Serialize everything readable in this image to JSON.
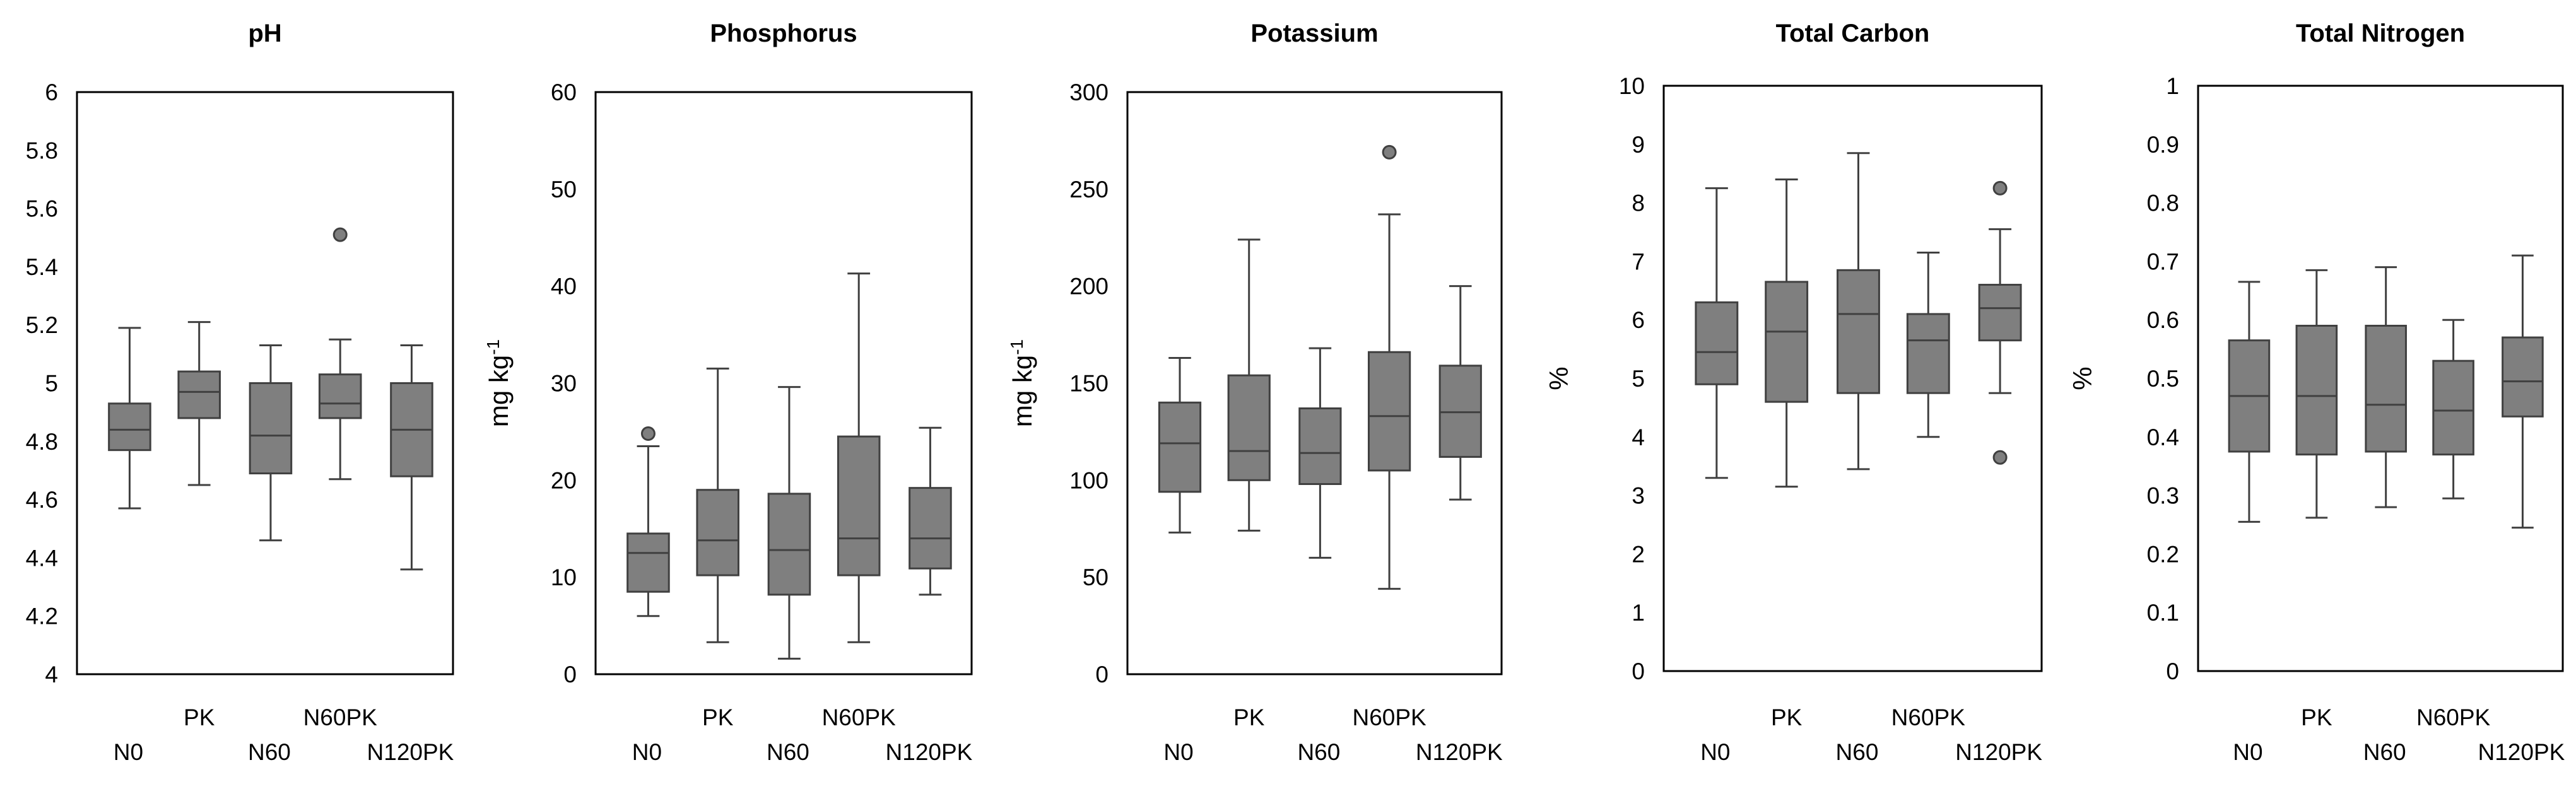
{
  "chart_data": [
    {
      "type": "boxplot",
      "title": "pH",
      "ylabel": "",
      "ylim": [
        4,
        6
      ],
      "yticks": [
        "4",
        "4.2",
        "4.4",
        "4.6",
        "4.8",
        "5",
        "5.2",
        "5.4",
        "5.6",
        "5.8",
        "6"
      ],
      "categories": [
        "N0",
        "PK",
        "N60",
        "N60PK",
        "N120PK"
      ],
      "boxes": [
        {
          "category": "N0",
          "min": 4.57,
          "q1": 4.77,
          "median": 4.84,
          "q3": 4.93,
          "max": 5.19,
          "outliers": []
        },
        {
          "category": "PK",
          "min": 4.65,
          "q1": 4.88,
          "median": 4.97,
          "q3": 5.04,
          "max": 5.21,
          "outliers": []
        },
        {
          "category": "N60",
          "min": 4.46,
          "q1": 4.69,
          "median": 4.82,
          "q3": 5.0,
          "max": 5.13,
          "outliers": []
        },
        {
          "category": "N60PK",
          "min": 4.67,
          "q1": 4.88,
          "median": 4.93,
          "q3": 5.03,
          "max": 5.15,
          "outliers": [
            5.51
          ]
        },
        {
          "category": "N120PK",
          "min": 4.36,
          "q1": 4.68,
          "median": 4.84,
          "q3": 5.0,
          "max": 5.13,
          "outliers": []
        }
      ]
    },
    {
      "type": "boxplot",
      "title": "Phosphorus",
      "ylabel": "mg kg",
      "ylabel_sup": "-1",
      "ylim": [
        0,
        60
      ],
      "yticks": [
        "0",
        "10",
        "20",
        "30",
        "40",
        "50",
        "60"
      ],
      "categories": [
        "N0",
        "PK",
        "N60",
        "N60PK",
        "N120PK"
      ],
      "boxes": [
        {
          "category": "N0",
          "min": 6,
          "q1": 8.5,
          "median": 12.5,
          "q3": 14.5,
          "max": 23.5,
          "outliers": [
            24.8
          ]
        },
        {
          "category": "PK",
          "min": 3.3,
          "q1": 10.2,
          "median": 13.8,
          "q3": 19.0,
          "max": 31.5,
          "outliers": []
        },
        {
          "category": "N60",
          "min": 1.6,
          "q1": 8.2,
          "median": 12.8,
          "q3": 18.6,
          "max": 29.6,
          "outliers": []
        },
        {
          "category": "N60PK",
          "min": 3.3,
          "q1": 10.2,
          "median": 14.0,
          "q3": 24.5,
          "max": 41.3,
          "outliers": []
        },
        {
          "category": "N120PK",
          "min": 8.2,
          "q1": 10.9,
          "median": 14.0,
          "q3": 19.2,
          "max": 25.4,
          "outliers": []
        }
      ]
    },
    {
      "type": "boxplot",
      "title": "Potassium",
      "ylabel": "mg kg",
      "ylabel_sup": "-1",
      "ylim": [
        0,
        300
      ],
      "yticks": [
        "0",
        "50",
        "100",
        "150",
        "200",
        "250",
        "300"
      ],
      "categories": [
        "N0",
        "PK",
        "N60",
        "N60PK",
        "N120PK"
      ],
      "boxes": [
        {
          "category": "N0",
          "min": 73,
          "q1": 94,
          "median": 119,
          "q3": 140,
          "max": 163,
          "outliers": []
        },
        {
          "category": "PK",
          "min": 74,
          "q1": 100,
          "median": 115,
          "q3": 154,
          "max": 224,
          "outliers": []
        },
        {
          "category": "N60",
          "min": 60,
          "q1": 98,
          "median": 114,
          "q3": 137,
          "max": 168,
          "outliers": []
        },
        {
          "category": "N60PK",
          "min": 44,
          "q1": 105,
          "median": 133,
          "q3": 166,
          "max": 237,
          "outliers": [
            269
          ]
        },
        {
          "category": "N120PK",
          "min": 90,
          "q1": 112,
          "median": 135,
          "q3": 159,
          "max": 200,
          "outliers": []
        }
      ]
    },
    {
      "type": "boxplot",
      "title": "Total Carbon",
      "ylabel": "%",
      "ylabel_sup": "",
      "ylim": [
        0,
        10
      ],
      "yticks": [
        "0",
        "1",
        "2",
        "3",
        "4",
        "5",
        "6",
        "7",
        "8",
        "9",
        "10"
      ],
      "categories": [
        "N0",
        "PK",
        "N60",
        "N60PK",
        "N120PK"
      ],
      "boxes": [
        {
          "category": "N0",
          "min": 3.3,
          "q1": 4.9,
          "median": 5.45,
          "q3": 6.3,
          "max": 8.25,
          "outliers": []
        },
        {
          "category": "PK",
          "min": 3.15,
          "q1": 4.6,
          "median": 5.8,
          "q3": 6.65,
          "max": 8.4,
          "outliers": []
        },
        {
          "category": "N60",
          "min": 3.45,
          "q1": 4.75,
          "median": 6.1,
          "q3": 6.85,
          "max": 8.85,
          "outliers": []
        },
        {
          "category": "N60PK",
          "min": 4.0,
          "q1": 4.75,
          "median": 5.65,
          "q3": 6.1,
          "max": 7.15,
          "outliers": []
        },
        {
          "category": "N120PK",
          "min": 4.75,
          "q1": 5.65,
          "median": 6.2,
          "q3": 6.6,
          "max": 7.55,
          "outliers": [
            8.25,
            3.65
          ]
        }
      ]
    },
    {
      "type": "boxplot",
      "title": "Total Nitrogen",
      "ylabel": "%",
      "ylabel_sup": "",
      "ylim": [
        0,
        1
      ],
      "yticks": [
        "0",
        "0.1",
        "0.2",
        "0.3",
        "0.4",
        "0.5",
        "0.6",
        "0.7",
        "0.8",
        "0.9",
        "1"
      ],
      "categories": [
        "N0",
        "PK",
        "N60",
        "N60PK",
        "N120PK"
      ],
      "boxes": [
        {
          "category": "N0",
          "min": 0.255,
          "q1": 0.375,
          "median": 0.47,
          "q3": 0.565,
          "max": 0.665,
          "outliers": []
        },
        {
          "category": "PK",
          "min": 0.262,
          "q1": 0.37,
          "median": 0.47,
          "q3": 0.59,
          "max": 0.685,
          "outliers": []
        },
        {
          "category": "N60",
          "min": 0.28,
          "q1": 0.375,
          "median": 0.455,
          "q3": 0.59,
          "max": 0.69,
          "outliers": []
        },
        {
          "category": "N60PK",
          "min": 0.295,
          "q1": 0.37,
          "median": 0.445,
          "q3": 0.53,
          "max": 0.6,
          "outliers": []
        },
        {
          "category": "N120PK",
          "min": 0.245,
          "q1": 0.435,
          "median": 0.495,
          "q3": 0.57,
          "max": 0.71,
          "outliers": []
        }
      ]
    }
  ]
}
